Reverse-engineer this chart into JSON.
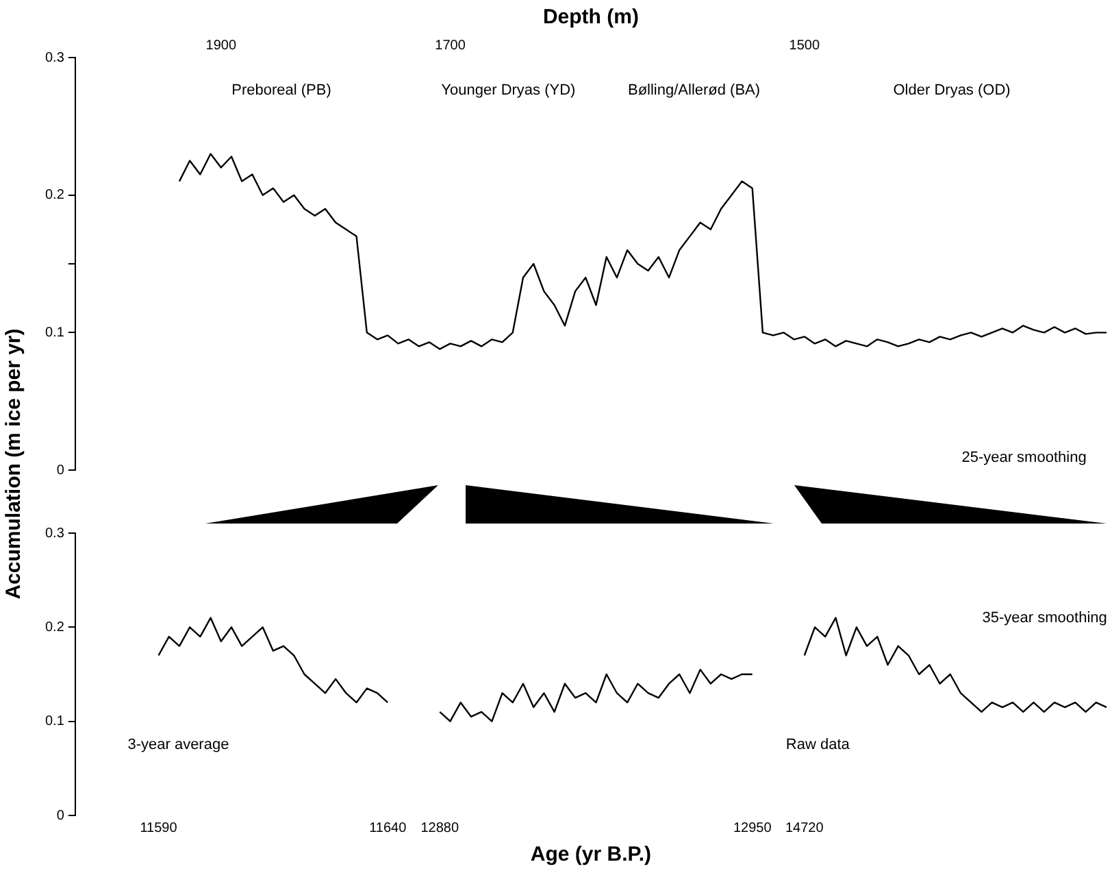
{
  "chart_data": [
    {
      "type": "line",
      "xlabel": "Depth (m)",
      "ylabel": "Accumulation (m ice per yr)",
      "categories": [
        null,
        null,
        null,
        null,
        null,
        null,
        null,
        null,
        null,
        null,
        null,
        null,
        null,
        null,
        "1900",
        null,
        null,
        null,
        null,
        null,
        null,
        null,
        null,
        null,
        null,
        null,
        null,
        null,
        null,
        null,
        null,
        null,
        null,
        null,
        null,
        null,
        "1700",
        null,
        null,
        null,
        null,
        null,
        null,
        null,
        null,
        null,
        null,
        null,
        null,
        null,
        null,
        null,
        null,
        null,
        null,
        null,
        null,
        null,
        null,
        null,
        null,
        null,
        null,
        null,
        null,
        null,
        null,
        null,
        null,
        null,
        "1500",
        null,
        null,
        null,
        null,
        null,
        null,
        null,
        null,
        null,
        null,
        null,
        null,
        null,
        null,
        null,
        null,
        null,
        null,
        null,
        null,
        null,
        null,
        null,
        null,
        null,
        null,
        null,
        null,
        null
      ],
      "series": [
        {
          "color": "#000000",
          "values": [
            null,
            null,
            null,
            null,
            null,
            null,
            null,
            null,
            null,
            null,
            0.21,
            0.225,
            0.215,
            0.23,
            0.22,
            0.228,
            0.21,
            0.215,
            0.2,
            0.205,
            0.195,
            0.2,
            0.19,
            0.185,
            0.19,
            0.18,
            0.175,
            0.17,
            0.1,
            0.095,
            0.098,
            0.092,
            0.095,
            0.09,
            0.093,
            0.088,
            0.092,
            0.09,
            0.094,
            0.09,
            0.095,
            0.093,
            0.1,
            0.14,
            0.15,
            0.13,
            0.12,
            0.105,
            0.13,
            0.14,
            0.12,
            0.155,
            0.14,
            0.16,
            0.15,
            0.145,
            0.155,
            0.14,
            0.16,
            0.17,
            0.18,
            0.175,
            0.19,
            0.2,
            0.21,
            0.205,
            0.1,
            0.098,
            0.1,
            0.095,
            0.097,
            0.092,
            0.095,
            0.09,
            0.094,
            0.092,
            0.09,
            0.095,
            0.093,
            0.09,
            0.092,
            0.095,
            0.093,
            0.097,
            0.095,
            0.098,
            0.1,
            0.097,
            0.1,
            0.103,
            0.1,
            0.105,
            0.102,
            0.1,
            0.104,
            0.1,
            0.103,
            0.099,
            0.1,
            0.1
          ]
        }
      ],
      "ylim": [
        0,
        0.3
      ],
      "yticks": [
        0,
        0.1,
        {
          "value": 0.15,
          "label": null
        },
        0.2,
        0.3
      ],
      "grid": false,
      "legend": false,
      "marker": "none",
      "line_style": "solid",
      "annotations": [
        "Preboreal (PB)",
        "Younger Dryas (YD)",
        "Bølling/Allerød (BA)",
        "Older Dryas (OD)",
        "25-year smoothing"
      ]
    },
    {
      "type": "line",
      "xlabel": "Age (yr B.P.)",
      "categories": [
        null,
        null,
        null,
        null,
        null,
        null,
        null,
        null,
        "11590",
        null,
        null,
        null,
        null,
        null,
        null,
        null,
        null,
        null,
        null,
        null,
        null,
        null,
        null,
        null,
        null,
        null,
        null,
        null,
        null,
        null,
        "11640",
        null,
        null,
        null,
        null,
        "12880",
        null,
        null,
        null,
        null,
        null,
        null,
        null,
        null,
        null,
        null,
        null,
        null,
        null,
        null,
        null,
        null,
        null,
        null,
        null,
        null,
        null,
        null,
        null,
        null,
        null,
        null,
        null,
        null,
        null,
        "12950",
        null,
        null,
        null,
        null,
        "14720",
        null,
        null,
        null,
        null,
        null,
        null,
        null,
        null,
        null,
        null,
        null,
        null,
        null,
        null,
        null,
        null,
        null,
        null,
        null,
        null,
        null,
        null,
        null,
        null,
        null,
        null,
        null,
        null,
        null
      ],
      "series": [
        {
          "color": "#000000",
          "values": [
            null,
            null,
            null,
            null,
            null,
            null,
            null,
            null,
            0.17,
            0.19,
            0.18,
            0.2,
            0.19,
            0.21,
            0.185,
            0.2,
            0.18,
            0.19,
            0.2,
            0.175,
            0.18,
            0.17,
            0.15,
            0.14,
            0.13,
            0.145,
            0.13,
            0.12,
            0.135,
            0.13,
            0.12,
            null,
            null,
            null,
            null,
            0.11,
            0.1,
            0.12,
            0.105,
            0.11,
            0.1,
            0.13,
            0.12,
            0.14,
            0.115,
            0.13,
            0.11,
            0.14,
            0.125,
            0.13,
            0.12,
            0.15,
            0.13,
            0.12,
            0.14,
            0.13,
            0.125,
            0.14,
            0.15,
            0.13,
            0.155,
            0.14,
            0.15,
            0.145,
            0.15,
            0.15,
            null,
            null,
            null,
            null,
            0.17,
            0.2,
            0.19,
            0.21,
            0.17,
            0.2,
            0.18,
            0.19,
            0.16,
            0.18,
            0.17,
            0.15,
            0.16,
            0.14,
            0.15,
            0.13,
            0.12,
            0.11,
            0.12,
            0.115,
            0.12,
            0.11,
            0.12,
            0.11,
            0.12,
            0.115,
            0.12,
            0.11,
            0.12,
            0.115
          ]
        }
      ],
      "ylim": [
        0,
        0.3
      ],
      "yticks": [
        0,
        0.1,
        0.2,
        0.3
      ],
      "grid": false,
      "legend": false,
      "marker": "none",
      "line_style": "solid",
      "annotations": [
        "3-year average",
        "Raw data",
        "35-year smoothing"
      ]
    }
  ]
}
